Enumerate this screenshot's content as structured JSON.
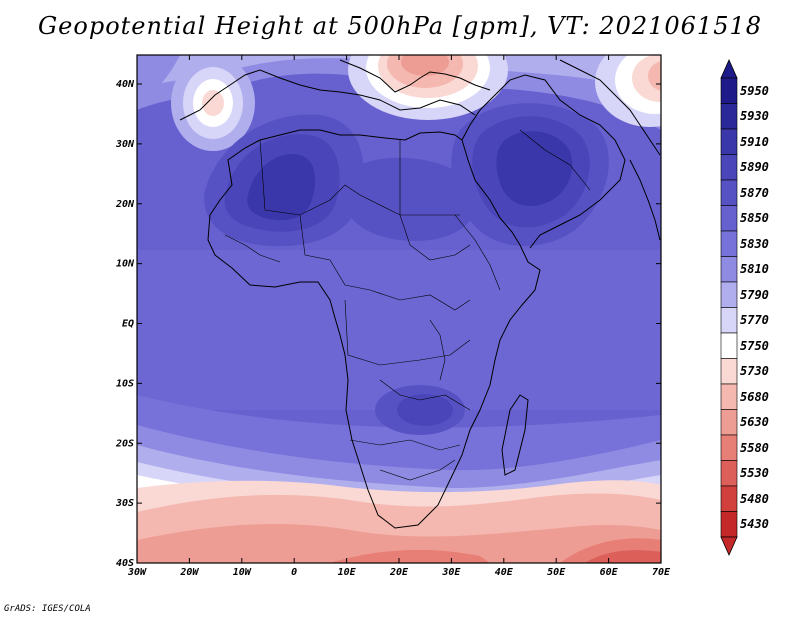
{
  "title": "Geopotential Height at 500hPa [gpm], VT: 2021061518",
  "credit": "GrADS: IGES/COLA",
  "lon_ticks": [
    "30W",
    "20W",
    "10W",
    "0",
    "10E",
    "20E",
    "30E",
    "40E",
    "50E",
    "60E",
    "70E"
  ],
  "lat_ticks": [
    "40N",
    "30N",
    "20N",
    "10N",
    "EQ",
    "10S",
    "20S",
    "30S",
    "40S"
  ],
  "colorbar": {
    "levels": [
      "5950",
      "5930",
      "5910",
      "5890",
      "5870",
      "5850",
      "5830",
      "5810",
      "5790",
      "5770",
      "5750",
      "5730",
      "5680",
      "5630",
      "5580",
      "5530",
      "5480",
      "5430"
    ],
    "colors": [
      "#1e1a8a",
      "#2b2899",
      "#3a37aa",
      "#4a46b9",
      "#5752c4",
      "#6661cf",
      "#7772d9",
      "#8f8be2",
      "#b1aeee",
      "#d7d5f8",
      "#ffffff",
      "#fad9d4",
      "#f4b8b0",
      "#ee9d94",
      "#e77f77",
      "#dd5f5a",
      "#d2403e",
      "#c42828"
    ]
  },
  "fields": {
    "background_color": "#6661cf",
    "zones": [
      {
        "name": "southern-low",
        "color": "#f4b8b0"
      },
      {
        "name": "southern-trough-deep",
        "color": "#e77f77"
      },
      {
        "name": "mediterranean-low",
        "color": "#ee9d94"
      },
      {
        "name": "saharan-high",
        "color": "#3a37aa"
      },
      {
        "name": "arabian-high",
        "color": "#3a37aa"
      },
      {
        "name": "atlantic-cutoff-low",
        "color": "#fad9d4"
      }
    ]
  }
}
